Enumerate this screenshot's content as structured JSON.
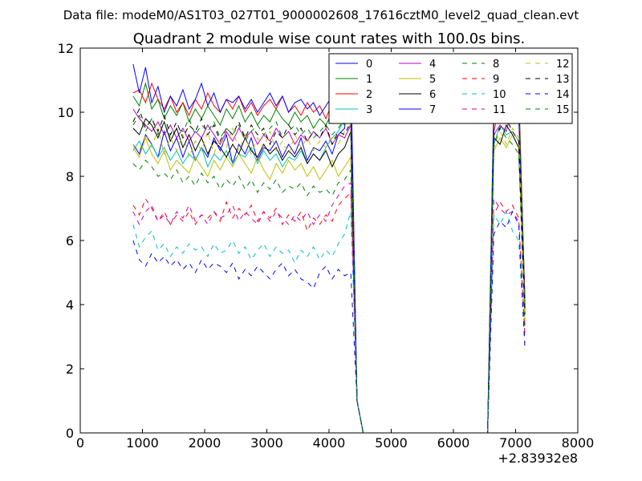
{
  "suptitle": "Data file: modeM0/AS1T03_027T01_9000002608_17616cztM0_level2_quad_clean.evt",
  "chart_data": {
    "type": "line",
    "title": "Quadrant 2 module wise count rates with 100.0s bins.",
    "xlabel": "",
    "ylabel": "",
    "x_offset_label": "+2.83932e8",
    "xlim": [
      0,
      8000
    ],
    "ylim": [
      0,
      12
    ],
    "xticks": [
      0,
      1000,
      2000,
      3000,
      4000,
      5000,
      6000,
      7000,
      8000
    ],
    "yticks": [
      0,
      2,
      4,
      6,
      8,
      10,
      12
    ],
    "grid": false,
    "legend_position": "top-right",
    "legend_columns": 4,
    "x": [
      850,
      950,
      1050,
      1150,
      1250,
      1350,
      1450,
      1550,
      1650,
      1750,
      1850,
      1950,
      2050,
      2150,
      2250,
      2350,
      2450,
      2550,
      2650,
      2750,
      2850,
      2950,
      3050,
      3150,
      3250,
      3350,
      3450,
      3550,
      3650,
      3750,
      3850,
      3950,
      4050,
      4150,
      4250,
      4350,
      4450,
      4550,
      4650,
      4750,
      4850,
      4950,
      5050,
      5150,
      5250,
      5350,
      5450,
      5550,
      5650,
      5750,
      5850,
      5950,
      6050,
      6150,
      6250,
      6350,
      6450,
      6550,
      6650,
      6750,
      6850,
      6950,
      7050,
      7150
    ],
    "series": [
      {
        "name": "0",
        "color": "#0000ff",
        "dash": "solid",
        "values": [
          9.0,
          8.7,
          9.3,
          9.0,
          8.6,
          9.4,
          8.8,
          9.2,
          8.6,
          9.1,
          8.5,
          8.9,
          8.6,
          9.2,
          8.8,
          9.3,
          8.4,
          9.0,
          8.7,
          9.2,
          8.5,
          8.9,
          8.8,
          9.1,
          8.6,
          9.0,
          8.7,
          9.2,
          8.5,
          8.9,
          8.8,
          9.1,
          8.7,
          9.3,
          9.5,
          11.5,
          1.0,
          0,
          0,
          0,
          0,
          0,
          0,
          0,
          0,
          0,
          0,
          0,
          0,
          0,
          0,
          0,
          0,
          0,
          0,
          0,
          0,
          0,
          10.5,
          11.2,
          10.8,
          10.6,
          10.4,
          4.2
        ]
      },
      {
        "name": "1",
        "color": "#008000",
        "dash": "solid",
        "values": [
          10.5,
          10.2,
          10.9,
          10.1,
          10.4,
          9.8,
          10.2,
          9.9,
          10.3,
          9.7,
          10.1,
          9.8,
          10.2,
          9.9,
          9.6,
          10.1,
          9.8,
          10.2,
          9.7,
          10.0,
          9.6,
          9.9,
          9.7,
          10.1,
          9.8,
          9.6,
          10.0,
          9.7,
          9.9,
          9.5,
          9.8,
          9.6,
          10.0,
          9.8,
          9.6,
          10.1,
          1.0,
          0,
          0,
          0,
          0,
          0,
          0,
          0,
          0,
          0,
          0,
          0,
          0,
          0,
          0,
          0,
          0,
          0,
          0,
          0,
          0,
          0,
          10.0,
          10.4,
          10.0,
          10.2,
          10.8,
          4.0
        ]
      },
      {
        "name": "2",
        "color": "#ff0000",
        "dash": "solid",
        "values": [
          10.6,
          10.7,
          10.3,
          10.9,
          10.4,
          10.1,
          10.5,
          10.0,
          10.3,
          9.9,
          10.4,
          10.1,
          10.6,
          10.2,
          10.0,
          10.4,
          10.1,
          10.5,
          10.0,
          10.3,
          9.9,
          10.2,
          10.4,
          10.1,
          10.5,
          10.0,
          10.2,
          9.9,
          10.3,
          10.0,
          10.2,
          9.8,
          10.3,
          10.1,
          10.4,
          10.5,
          1.0,
          0,
          0,
          0,
          0,
          0,
          0,
          0,
          0,
          0,
          0,
          0,
          0,
          0,
          0,
          0,
          0,
          0,
          0,
          0,
          0,
          0,
          9.4,
          10.3,
          10.7,
          10.8,
          10.5,
          4.1
        ]
      },
      {
        "name": "3",
        "color": "#00bfbf",
        "dash": "solid",
        "values": [
          8.8,
          9.1,
          8.7,
          9.0,
          8.6,
          8.9,
          8.5,
          8.8,
          8.4,
          8.7,
          8.5,
          8.9,
          8.3,
          8.7,
          8.5,
          8.8,
          8.4,
          8.7,
          8.6,
          8.9,
          8.4,
          8.8,
          8.5,
          8.7,
          8.3,
          8.6,
          8.5,
          8.8,
          8.4,
          8.7,
          8.5,
          8.9,
          9.2,
          9.4,
          9.8,
          10.2,
          1.0,
          0,
          0,
          0,
          0,
          0,
          0,
          0,
          0,
          0,
          0,
          0,
          0,
          0,
          0,
          0,
          0,
          0,
          0,
          0,
          0,
          0,
          9.0,
          9.6,
          9.3,
          9.4,
          9.1,
          3.8
        ]
      },
      {
        "name": "4",
        "color": "#bf00bf",
        "dash": "solid",
        "values": [
          10.1,
          9.8,
          9.6,
          9.4,
          9.7,
          9.3,
          9.6,
          9.2,
          9.5,
          9.1,
          9.4,
          9.2,
          9.6,
          9.3,
          9.0,
          9.4,
          9.1,
          9.5,
          9.2,
          9.4,
          9.0,
          9.3,
          9.1,
          9.5,
          9.2,
          9.4,
          9.0,
          9.3,
          9.1,
          9.4,
          9.2,
          9.5,
          9.0,
          9.3,
          9.2,
          9.6,
          1.0,
          0,
          0,
          0,
          0,
          0,
          0,
          0,
          0,
          0,
          0,
          0,
          0,
          0,
          0,
          0,
          0,
          0,
          0,
          0,
          0,
          0,
          9.3,
          9.6,
          9.4,
          10.2,
          9.8,
          3.9
        ]
      },
      {
        "name": "5",
        "color": "#bfbf00",
        "dash": "solid",
        "values": [
          8.9,
          8.6,
          9.2,
          8.7,
          8.4,
          8.8,
          8.2,
          8.5,
          8.3,
          8.1,
          8.6,
          8.3,
          8.0,
          8.5,
          8.2,
          8.6,
          8.3,
          8.7,
          8.4,
          8.1,
          8.6,
          8.2,
          7.9,
          8.4,
          8.1,
          8.5,
          8.2,
          8.4,
          8.0,
          8.3,
          7.9,
          8.2,
          8.5,
          8.0,
          8.3,
          8.6,
          1.0,
          0,
          0,
          0,
          0,
          0,
          0,
          0,
          0,
          0,
          0,
          0,
          0,
          0,
          0,
          0,
          0,
          0,
          0,
          0,
          0,
          0,
          8.8,
          9.2,
          8.9,
          9.3,
          8.9,
          3.5
        ]
      },
      {
        "name": "6",
        "color": "#000000",
        "dash": "solid",
        "values": [
          9.5,
          9.3,
          9.8,
          9.6,
          9.2,
          9.7,
          9.1,
          9.5,
          8.9,
          9.3,
          8.8,
          9.2,
          8.7,
          9.1,
          8.9,
          8.6,
          9.0,
          8.7,
          9.2,
          8.8,
          8.6,
          9.0,
          8.7,
          8.9,
          8.5,
          8.8,
          8.6,
          8.9,
          8.4,
          8.7,
          8.5,
          8.8,
          8.3,
          8.7,
          8.9,
          9.4,
          1.0,
          0,
          0,
          0,
          0,
          0,
          0,
          0,
          0,
          0,
          0,
          0,
          0,
          0,
          0,
          0,
          0,
          0,
          0,
          0,
          0,
          0,
          9.2,
          9.0,
          9.6,
          9.3,
          8.9,
          3.7
        ]
      },
      {
        "name": "7",
        "color": "#0000ff",
        "dash": "solid",
        "values": [
          11.5,
          10.6,
          11.4,
          10.3,
          10.8,
          10.0,
          10.5,
          10.2,
          10.7,
          10.1,
          10.4,
          10.9,
          10.2,
          10.6,
          10.0,
          10.4,
          10.3,
          10.5,
          10.1,
          10.4,
          10.0,
          10.3,
          10.6,
          10.2,
          10.5,
          10.0,
          10.3,
          10.4,
          10.1,
          10.3,
          9.9,
          10.2,
          10.5,
          10.0,
          10.3,
          10.4,
          1.0,
          0,
          0,
          0,
          0,
          0,
          0,
          0,
          0,
          0,
          0,
          0,
          0,
          0,
          0,
          0,
          0,
          0,
          0,
          0,
          0,
          0,
          9.8,
          10.1,
          10.3,
          10.6,
          10.2,
          3.9
        ]
      },
      {
        "name": "8",
        "color": "#008000",
        "dash": "dashed",
        "values": [
          8.4,
          8.2,
          8.5,
          8.3,
          8.0,
          8.1,
          7.9,
          8.2,
          7.8,
          8.0,
          7.7,
          8.1,
          7.8,
          8.0,
          7.6,
          7.9,
          7.7,
          8.0,
          7.6,
          7.9,
          7.5,
          7.8,
          7.6,
          7.9,
          7.5,
          7.7,
          7.6,
          7.8,
          7.4,
          7.7,
          7.5,
          7.6,
          7.4,
          7.8,
          7.9,
          8.2,
          1.0,
          0,
          0,
          0,
          0,
          0,
          0,
          0,
          0,
          0,
          0,
          0,
          0,
          0,
          0,
          0,
          0,
          0,
          0,
          0,
          0,
          0,
          8.9,
          9.5,
          9.2,
          9.0,
          8.7,
          3.3
        ]
      },
      {
        "name": "9",
        "color": "#ff0000",
        "dash": "dashed",
        "values": [
          7.1,
          6.8,
          7.3,
          7.0,
          6.6,
          6.9,
          6.5,
          6.8,
          6.6,
          6.9,
          6.5,
          6.8,
          6.7,
          6.9,
          6.6,
          7.2,
          6.7,
          7.0,
          6.8,
          7.1,
          6.6,
          6.9,
          6.7,
          7.0,
          6.5,
          6.8,
          6.6,
          6.9,
          6.3,
          6.7,
          6.5,
          6.8,
          6.6,
          7.1,
          7.3,
          7.5,
          1.0,
          0,
          0,
          0,
          0,
          0,
          0,
          0,
          0,
          0,
          0,
          0,
          0,
          0,
          0,
          0,
          0,
          0,
          0,
          0,
          0,
          0,
          6.8,
          7.2,
          6.9,
          7.1,
          6.7,
          3.0
        ]
      },
      {
        "name": "10",
        "color": "#00bfbf",
        "dash": "dashed",
        "values": [
          6.5,
          5.8,
          6.1,
          6.3,
          5.7,
          5.9,
          5.5,
          5.8,
          5.6,
          5.9,
          5.7,
          5.8,
          5.5,
          5.9,
          5.6,
          5.7,
          6.0,
          5.6,
          5.8,
          5.4,
          5.7,
          5.9,
          5.5,
          5.8,
          5.6,
          5.7,
          5.3,
          5.7,
          5.5,
          5.8,
          5.4,
          5.7,
          5.5,
          5.9,
          6.2,
          6.9,
          1.0,
          0,
          0,
          0,
          0,
          0,
          0,
          0,
          0,
          0,
          0,
          0,
          0,
          0,
          0,
          0,
          0,
          0,
          0,
          0,
          0,
          0,
          6.8,
          6.5,
          6.9,
          6.3,
          6.0,
          2.8
        ]
      },
      {
        "name": "11",
        "color": "#bf00bf",
        "dash": "dashed",
        "values": [
          6.9,
          6.5,
          6.9,
          7.1,
          6.6,
          6.8,
          6.5,
          6.9,
          6.7,
          7.1,
          6.6,
          6.8,
          6.5,
          6.9,
          6.7,
          6.8,
          7.1,
          6.6,
          6.9,
          6.7,
          6.5,
          6.9,
          6.6,
          6.9,
          6.7,
          6.5,
          6.8,
          6.6,
          6.9,
          6.5,
          6.8,
          6.6,
          7.1,
          7.4,
          7.7,
          7.8,
          1.0,
          0,
          0,
          0,
          0,
          0,
          0,
          0,
          0,
          0,
          0,
          0,
          0,
          0,
          0,
          0,
          0,
          0,
          0,
          0,
          0,
          0,
          7.3,
          7.0,
          6.8,
          6.9,
          6.6,
          2.9
        ]
      },
      {
        "name": "12",
        "color": "#bfbf00",
        "dash": "dashed",
        "values": [
          9.0,
          8.8,
          9.3,
          8.9,
          9.5,
          8.7,
          9.2,
          8.8,
          9.3,
          8.6,
          9.1,
          8.8,
          9.4,
          8.7,
          9.2,
          8.9,
          9.5,
          8.8,
          9.3,
          8.7,
          9.2,
          8.9,
          9.4,
          8.8,
          9.1,
          8.7,
          9.3,
          8.9,
          9.2,
          8.8,
          9.1,
          8.9,
          9.3,
          9.0,
          9.4,
          9.6,
          1.0,
          0,
          0,
          0,
          0,
          0,
          0,
          0,
          0,
          0,
          0,
          0,
          0,
          0,
          0,
          0,
          0,
          0,
          0,
          0,
          0,
          0,
          9.1,
          9.4,
          9.0,
          9.5,
          9.2,
          3.6
        ]
      },
      {
        "name": "13",
        "color": "#000000",
        "dash": "dashed",
        "values": [
          9.7,
          10.1,
          9.5,
          9.8,
          9.4,
          9.9,
          9.3,
          9.7,
          9.2,
          9.6,
          9.4,
          9.8,
          9.3,
          9.6,
          9.1,
          9.5,
          9.3,
          9.7,
          9.2,
          9.6,
          9.3,
          9.5,
          9.0,
          9.4,
          9.2,
          9.6,
          9.3,
          9.5,
          9.1,
          9.4,
          9.2,
          9.6,
          9.0,
          9.4,
          9.3,
          9.7,
          1.0,
          0,
          0,
          0,
          0,
          0,
          0,
          0,
          0,
          0,
          0,
          0,
          0,
          0,
          0,
          0,
          0,
          0,
          0,
          0,
          0,
          0,
          9.3,
          9.5,
          9.8,
          9.4,
          9.1,
          3.7
        ]
      },
      {
        "name": "14",
        "color": "#0000ff",
        "dash": "dashed",
        "values": [
          6.0,
          5.4,
          5.2,
          5.6,
          5.3,
          5.5,
          5.2,
          5.4,
          5.1,
          5.3,
          5.0,
          5.4,
          5.1,
          5.3,
          5.2,
          5.0,
          5.3,
          4.8,
          5.1,
          4.9,
          5.2,
          5.0,
          4.8,
          5.1,
          5.3,
          4.9,
          5.1,
          4.8,
          4.7,
          4.5,
          5.0,
          5.2,
          4.8,
          5.1,
          4.9,
          5.0,
          1.0,
          0,
          0,
          0,
          0,
          0,
          0,
          0,
          0,
          0,
          0,
          0,
          0,
          0,
          0,
          0,
          0,
          0,
          0,
          0,
          0,
          0,
          6.2,
          6.6,
          6.4,
          6.9,
          6.5,
          2.6
        ]
      },
      {
        "name": "15",
        "color": "#008000",
        "dash": "dashed",
        "values": [
          9.6,
          9.9,
          9.4,
          9.8,
          9.3,
          9.7,
          9.2,
          9.5,
          9.4,
          9.8,
          9.3,
          9.6,
          9.4,
          9.7,
          9.2,
          9.5,
          9.3,
          9.6,
          9.1,
          9.4,
          9.6,
          9.3,
          9.5,
          9.7,
          9.2,
          9.4,
          9.6,
          9.3,
          9.5,
          9.2,
          9.4,
          9.6,
          9.3,
          9.5,
          9.8,
          10.0,
          1.0,
          0,
          0,
          0,
          0,
          0,
          0,
          0,
          0,
          0,
          0,
          0,
          0,
          0,
          0,
          0,
          0,
          0,
          0,
          0,
          0,
          0,
          10.3,
          10.5,
          10.2,
          10.6,
          10.3,
          4.0
        ]
      }
    ]
  }
}
